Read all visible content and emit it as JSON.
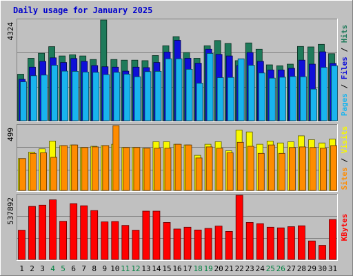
{
  "chart_data": {
    "type": "bar",
    "title": "Daily usage for January 2025",
    "categories": [
      "1",
      "2",
      "3",
      "4",
      "5",
      "6",
      "7",
      "8",
      "9",
      "10",
      "11",
      "12",
      "13",
      "14",
      "15",
      "16",
      "17",
      "18",
      "19",
      "20",
      "21",
      "22",
      "23",
      "24",
      "25",
      "26",
      "27",
      "28",
      "29",
      "30",
      "31"
    ],
    "weekend_days": [
      "4",
      "5",
      "11",
      "12",
      "18",
      "19",
      "25",
      "26"
    ],
    "panels": [
      {
        "id": "hits_files_pages",
        "max_label": "4324",
        "ylim": [
          0,
          4324
        ],
        "labels": [
          "Pages",
          "Files",
          "Hits"
        ],
        "series": [
          {
            "name": "Hits",
            "color": "#1e7a5a",
            "values": [
              2000,
              2680,
              2900,
              3180,
              2780,
              2830,
              2780,
              2630,
              4324,
              2630,
              2600,
              2600,
              2580,
              2800,
              3220,
              3610,
              2930,
              2680,
              3220,
              3440,
              3320,
              2580,
              3340,
              3070,
              2400,
              2360,
              2430,
              3190,
              3170,
              3280,
              2880
            ]
          },
          {
            "name": "Files",
            "color": "#0f0fd8",
            "values": [
              1780,
              2300,
              2550,
              2700,
              2500,
              2670,
              2550,
              2370,
              2320,
              2300,
              2130,
              2300,
              2280,
              2500,
              2950,
              3450,
              2680,
              2470,
              3070,
              2850,
              2780,
              2370,
              2930,
              2550,
              2180,
              2180,
              2250,
              2600,
              2430,
              2960,
              2460
            ]
          },
          {
            "name": "Pages",
            "color": "#18b4ee",
            "values": [
              1670,
              1930,
              1960,
              2380,
              2130,
              2120,
              2090,
              2080,
              1980,
              2080,
              2000,
              1890,
              2110,
              2120,
              2660,
              2660,
              2210,
              1610,
              2890,
              1850,
              1860,
              2660,
              2380,
              2050,
              1830,
              1870,
              1900,
              1890,
              1360,
              2290,
              2360
            ]
          }
        ]
      },
      {
        "id": "visits_sites",
        "max_label": "499",
        "ylim": [
          0,
          499
        ],
        "labels": [
          "Sites",
          "Visits"
        ],
        "series": [
          {
            "name": "Visits",
            "color": "#f8f800",
            "values": [
              245,
              295,
              320,
              380,
              345,
              350,
              330,
              340,
              345,
              355,
              330,
              330,
              325,
              375,
              375,
              355,
              350,
              270,
              355,
              375,
              305,
              465,
              450,
              355,
              380,
              365,
              375,
              420,
              390,
              365,
              395
            ]
          },
          {
            "name": "Sites",
            "color": "#ff8c00",
            "values": [
              245,
              285,
              290,
              255,
              345,
              350,
              330,
              335,
              345,
              499,
              330,
              330,
              325,
              325,
              325,
              355,
              350,
              250,
              335,
              325,
              290,
              370,
              340,
              285,
              350,
              285,
              330,
              335,
              330,
              325,
              345
            ]
          }
        ]
      },
      {
        "id": "kbytes",
        "max_label": "537892",
        "ylim": [
          0,
          537892
        ],
        "labels": [
          "KBytes"
        ],
        "series": [
          {
            "name": "KBytes",
            "color": "#ff0000",
            "values": [
              245000,
              445000,
              455000,
              500000,
              320000,
              468000,
              450000,
              410000,
              315000,
              318000,
              285000,
              245000,
              405000,
              405000,
              310000,
              255000,
              270000,
              247000,
              260000,
              280000,
              235000,
              537892,
              310000,
              300000,
              270000,
              265000,
              275000,
              282000,
              155000,
              118000,
              335000
            ]
          }
        ]
      }
    ],
    "grid": true
  }
}
